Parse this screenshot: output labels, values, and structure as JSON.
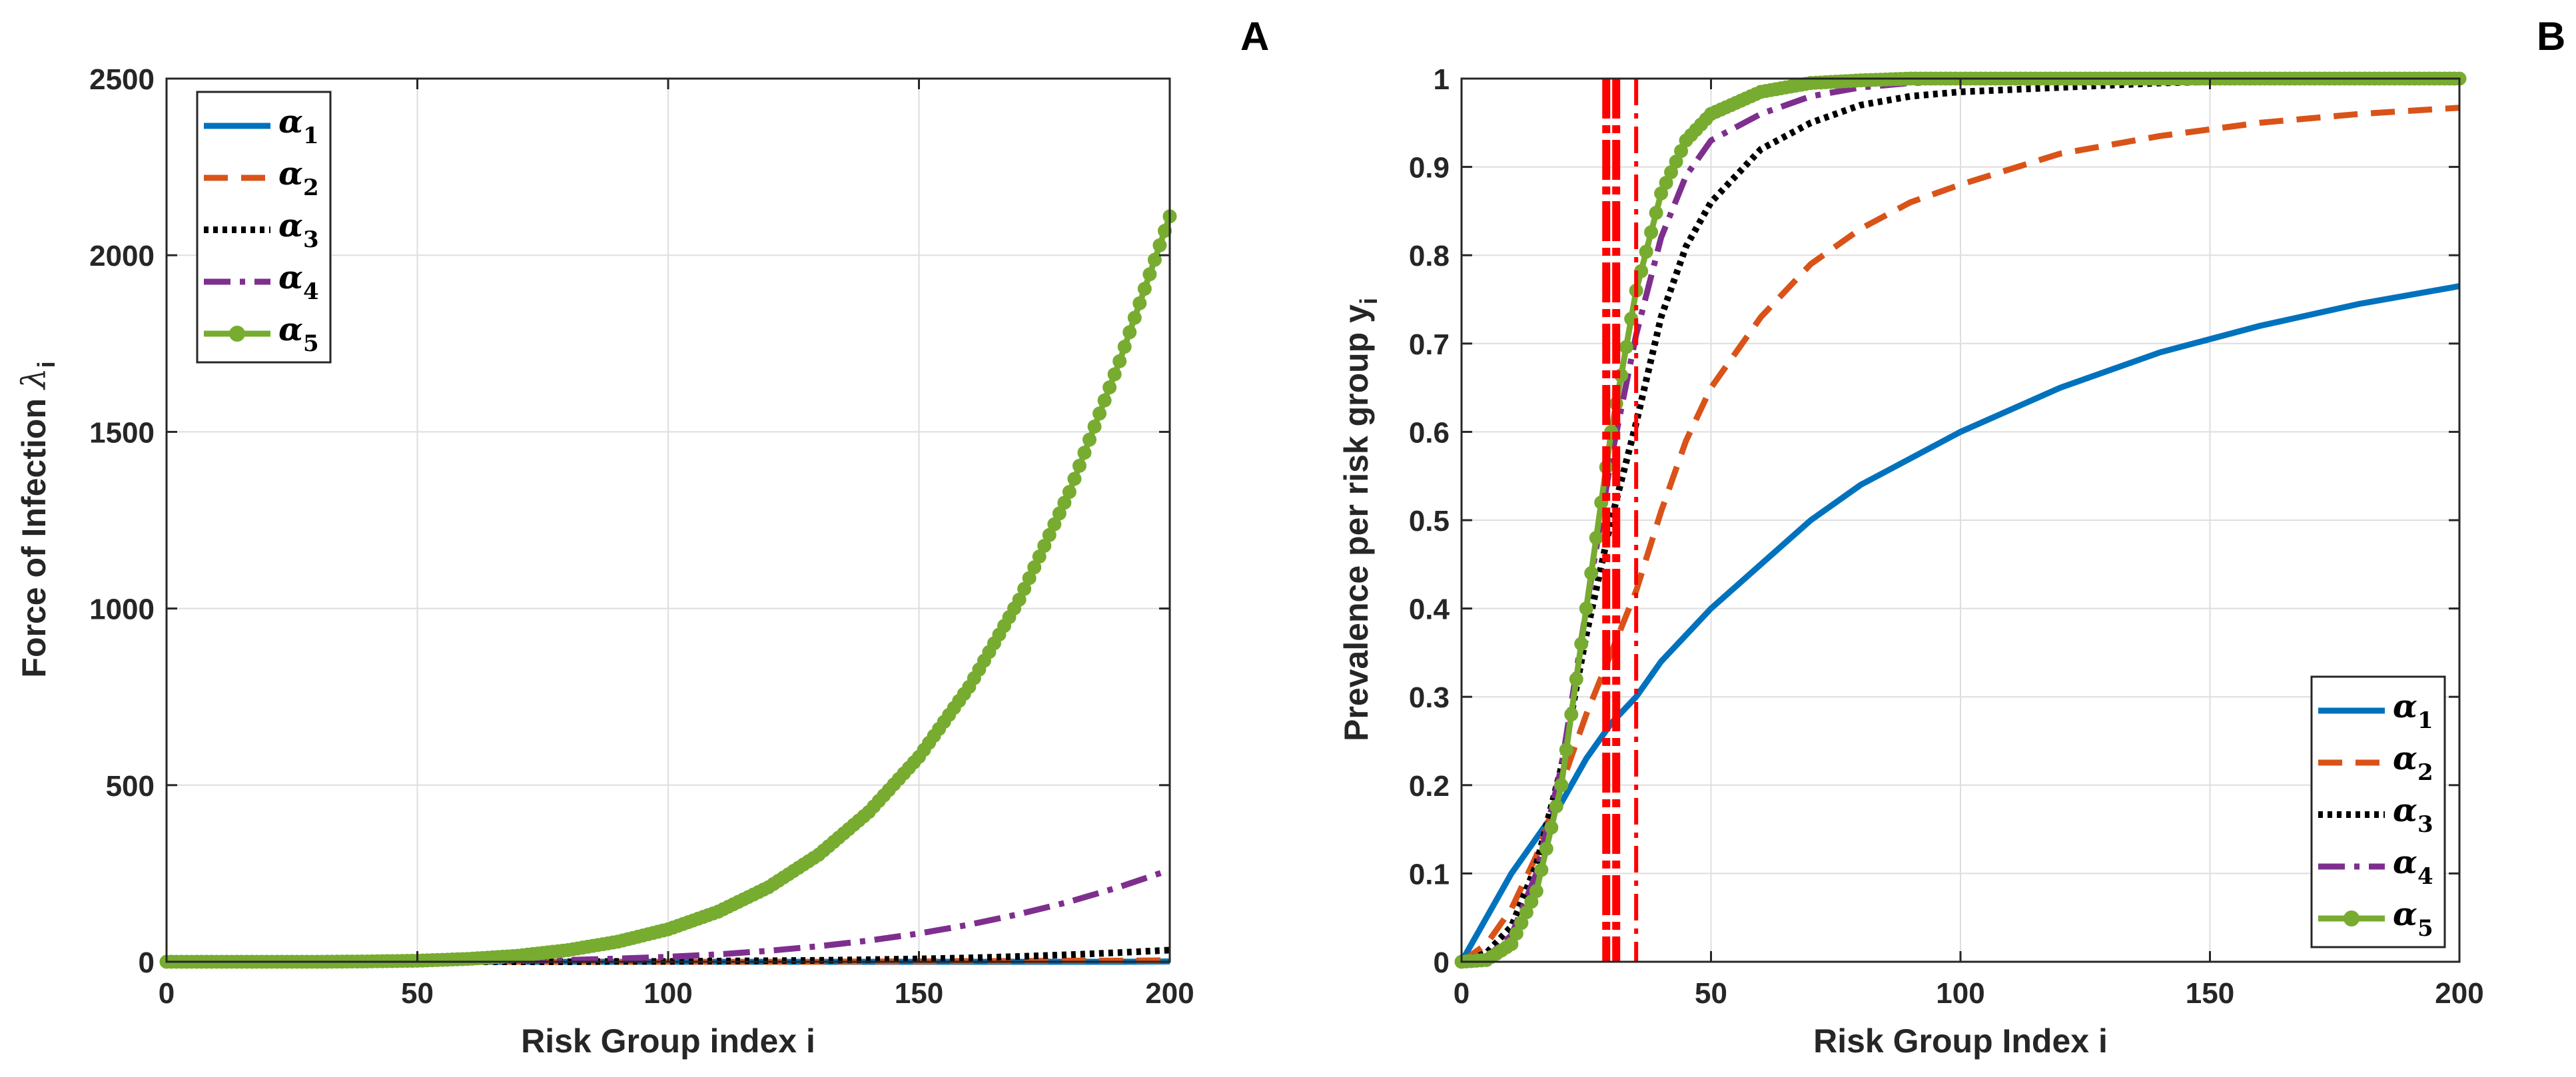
{
  "chart_data": [
    {
      "type": "line",
      "panel_label": "A",
      "xlabel": "Risk Group index i",
      "ylabel": "Force of Infection",
      "ylabel_symbol": "λ",
      "ylabel_subscript": "i",
      "xlim": [
        0,
        200
      ],
      "ylim": [
        0,
        2500
      ],
      "xticks": [
        0,
        50,
        100,
        150,
        200
      ],
      "yticks": [
        0,
        500,
        1000,
        1500,
        2000,
        2500
      ],
      "grid": true,
      "legend_location": "top-left",
      "x": [
        0,
        10,
        20,
        30,
        40,
        50,
        60,
        70,
        80,
        90,
        100,
        110,
        120,
        130,
        140,
        150,
        160,
        170,
        180,
        190,
        200
      ],
      "series": [
        {
          "name": "α",
          "subscript": "1",
          "color": "#0072BD",
          "style": "solid",
          "values": [
            0,
            0,
            0,
            0,
            0,
            0,
            0,
            0,
            0,
            0,
            0,
            0,
            0,
            0,
            0,
            0,
            0,
            0,
            0,
            0,
            1
          ]
        },
        {
          "name": "α",
          "subscript": "2",
          "color": "#D95319",
          "style": "dashed",
          "values": [
            0,
            0,
            0,
            0,
            0,
            0,
            0,
            0,
            0,
            0,
            0,
            0,
            0,
            0,
            1,
            1,
            2,
            2,
            3,
            3,
            4
          ]
        },
        {
          "name": "α",
          "subscript": "3",
          "color": "#000000",
          "style": "dotted",
          "values": [
            0,
            0,
            0,
            0,
            0,
            0,
            0,
            0,
            0,
            1,
            1,
            2,
            3,
            4,
            6,
            8,
            11,
            15,
            20,
            26,
            33
          ]
        },
        {
          "name": "α",
          "subscript": "4",
          "color": "#7E2F8E",
          "style": "dashdot",
          "values": [
            0,
            0,
            0,
            0,
            0,
            1,
            1,
            3,
            5,
            9,
            14,
            21,
            31,
            44,
            60,
            80,
            105,
            135,
            170,
            212,
            260
          ]
        },
        {
          "name": "α",
          "subscript": "5",
          "color": "#77AC30",
          "style": "solid-marker",
          "values": [
            0,
            0,
            0,
            0,
            1,
            3,
            8,
            17,
            33,
            57,
            92,
            142,
            211,
            303,
            424,
            580,
            778,
            1025,
            1330,
            1700,
            2110
          ]
        }
      ]
    },
    {
      "type": "line",
      "panel_label": "B",
      "xlabel": "Risk Group Index i",
      "ylabel": "Prevalence per risk group y",
      "ylabel_subscript": "i",
      "xlim": [
        0,
        200
      ],
      "ylim": [
        0,
        1
      ],
      "xticks": [
        0,
        50,
        100,
        150,
        200
      ],
      "yticks": [
        0,
        0.1,
        0.2,
        0.3,
        0.4,
        0.5,
        0.6,
        0.7,
        0.8,
        0.9,
        1
      ],
      "grid": true,
      "legend_location": "bottom-right",
      "x": [
        0,
        5,
        10,
        15,
        20,
        25,
        30,
        35,
        40,
        45,
        50,
        60,
        70,
        80,
        90,
        100,
        120,
        140,
        160,
        180,
        200
      ],
      "series": [
        {
          "name": "α",
          "subscript": "1",
          "color": "#0072BD",
          "style": "solid",
          "values": [
            0.0,
            0.05,
            0.1,
            0.14,
            0.18,
            0.23,
            0.27,
            0.3,
            0.34,
            0.37,
            0.4,
            0.45,
            0.5,
            0.54,
            0.57,
            0.6,
            0.65,
            0.69,
            0.72,
            0.745,
            0.765
          ]
        },
        {
          "name": "α",
          "subscript": "2",
          "color": "#D95319",
          "style": "dashed",
          "values": [
            0.0,
            0.02,
            0.06,
            0.12,
            0.2,
            0.28,
            0.35,
            0.42,
            0.51,
            0.59,
            0.65,
            0.73,
            0.79,
            0.83,
            0.86,
            0.88,
            0.915,
            0.935,
            0.95,
            0.96,
            0.967
          ]
        },
        {
          "name": "α",
          "subscript": "3",
          "color": "#000000",
          "style": "dotted",
          "values": [
            0.0,
            0.01,
            0.04,
            0.11,
            0.22,
            0.37,
            0.5,
            0.61,
            0.73,
            0.81,
            0.86,
            0.92,
            0.95,
            0.97,
            0.98,
            0.985,
            0.99,
            0.995,
            0.998,
            0.999,
            1.0
          ]
        },
        {
          "name": "α",
          "subscript": "4",
          "color": "#7E2F8E",
          "style": "dashdot",
          "values": [
            0.0,
            0.005,
            0.03,
            0.1,
            0.22,
            0.4,
            0.57,
            0.71,
            0.82,
            0.89,
            0.93,
            0.96,
            0.98,
            0.99,
            0.995,
            0.997,
            0.999,
            1.0,
            1.0,
            1.0,
            1.0
          ]
        },
        {
          "name": "α",
          "subscript": "5",
          "color": "#77AC30",
          "style": "solid-marker",
          "values": [
            0.0,
            0.002,
            0.02,
            0.08,
            0.2,
            0.4,
            0.6,
            0.76,
            0.87,
            0.93,
            0.96,
            0.985,
            0.995,
            0.998,
            1.0,
            1.0,
            1.0,
            1.0,
            1.0,
            1.0,
            1.0
          ]
        }
      ],
      "vertical_lines": [
        {
          "x": 29,
          "color": "#FF0000",
          "style": "dashdot-thick"
        },
        {
          "x": 31,
          "color": "#FF0000",
          "style": "dashdot-thick"
        },
        {
          "x": 35,
          "color": "#FF0000",
          "style": "dashdot"
        }
      ]
    }
  ]
}
